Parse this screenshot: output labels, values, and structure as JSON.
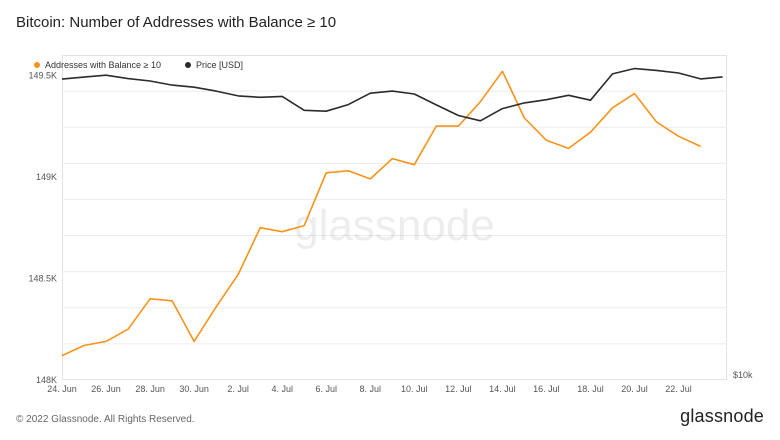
{
  "title": "Bitcoin: Number of Addresses with Balance ≥ 10",
  "footer": {
    "copyright": "© 2022 Glassnode. All Rights Reserved.",
    "brand": "glassnode",
    "watermark": "glassnode"
  },
  "colors": {
    "addresses": "#f7931a",
    "price": "#2b2b2b",
    "grid": "#ececec",
    "axis_text": "#555555"
  },
  "legend": {
    "addresses_label": "Addresses with Balance ≥ 10",
    "price_label": "Price [USD]"
  },
  "chart_data": {
    "type": "line",
    "title": "Bitcoin: Number of Addresses with Balance ≥ 10",
    "x_tick_labels": [
      "24. Jun",
      "26. Jun",
      "28. Jun",
      "30. Jun",
      "2. Jul",
      "4. Jul",
      "6. Jul",
      "8. Jul",
      "10. Jul",
      "12. Jul",
      "14. Jul",
      "16. Jul",
      "18. Jul",
      "20. Jul",
      "22. Jul"
    ],
    "y_left_ticks": [
      {
        "value": 148000,
        "label": "148K"
      },
      {
        "value": 148500,
        "label": "148.5K"
      },
      {
        "value": 149000,
        "label": "149K"
      },
      {
        "value": 149500,
        "label": "149.5K"
      }
    ],
    "y_left_range": [
      148000,
      149600
    ],
    "y_right_label": "$10k",
    "y_right_range": [
      10000,
      30000
    ],
    "grid": true,
    "legend_position": "top-left",
    "x_range": [
      0,
      30.2
    ],
    "series": [
      {
        "name": "Addresses with Balance ≥ 10",
        "axis": "left",
        "color": "#f7931a",
        "x": [
          0,
          1,
          2,
          3,
          4,
          5,
          6,
          7,
          8,
          9,
          10,
          11,
          12,
          13,
          14,
          15,
          16,
          17,
          18,
          19,
          20,
          21,
          22,
          23,
          24,
          25,
          26,
          27,
          28,
          29
        ],
        "values": [
          148120,
          148170,
          148190,
          148250,
          148400,
          148390,
          148190,
          148360,
          148520,
          148750,
          148730,
          148760,
          149020,
          149030,
          148990,
          149090,
          149060,
          149250,
          149250,
          149370,
          149520,
          149290,
          149180,
          149140,
          149220,
          149340,
          149410,
          149270,
          149200,
          149150
        ]
      },
      {
        "name": "Price [USD]",
        "axis": "right",
        "color": "#2b2b2b",
        "x": [
          0,
          1,
          2,
          3,
          4,
          5,
          6,
          7,
          8,
          9,
          10,
          11,
          12,
          13,
          14,
          15,
          16,
          17,
          18,
          19,
          20,
          21,
          22,
          23,
          24,
          25,
          26,
          27,
          28,
          29,
          30
        ],
        "values": [
          28520,
          28640,
          28760,
          28550,
          28400,
          28150,
          28020,
          27780,
          27480,
          27400,
          27450,
          26600,
          26540,
          26950,
          27650,
          27780,
          27600,
          26930,
          26280,
          25950,
          26700,
          27050,
          27250,
          27520,
          27220,
          28840,
          29170,
          29050,
          28890,
          28530,
          28650
        ]
      }
    ]
  }
}
